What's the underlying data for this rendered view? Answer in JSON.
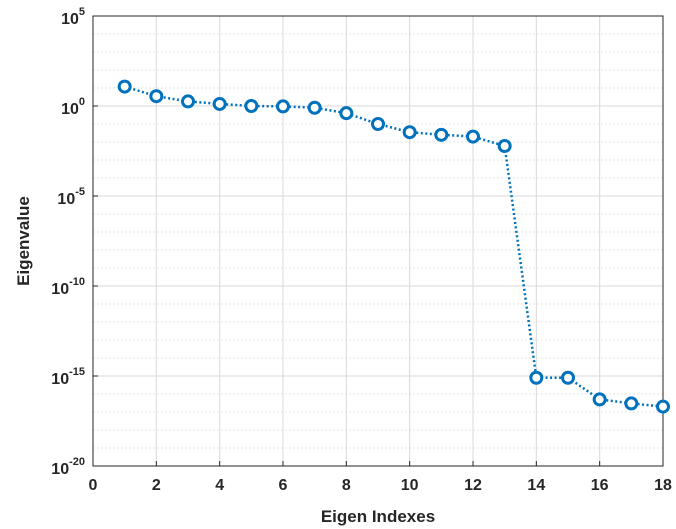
{
  "chart_data": {
    "type": "line",
    "xlabel": "Eigen Indexes",
    "ylabel": "Eigenvalue",
    "x_ticks": [
      "0",
      "2",
      "4",
      "6",
      "8",
      "10",
      "12",
      "14",
      "16",
      "18"
    ],
    "y_ticks": [
      {
        "base": "10",
        "exp": "-20"
      },
      {
        "base": "10",
        "exp": "-15"
      },
      {
        "base": "10",
        "exp": "-10"
      },
      {
        "base": "10",
        "exp": "-5"
      },
      {
        "base": "10",
        "exp": "0"
      },
      {
        "base": "10",
        "exp": "5"
      }
    ],
    "xlim": [
      0,
      18
    ],
    "ylim": [
      1e-20,
      100000.0
    ],
    "y_scale": "log",
    "grid": true,
    "minor_grid": true,
    "series": [
      {
        "color": "#0072BD",
        "marker": "circle",
        "line_style": "dotted",
        "x": [
          1,
          2,
          3,
          4,
          5,
          6,
          7,
          8,
          9,
          10,
          11,
          12,
          13,
          14,
          15,
          16,
          17,
          18
        ],
        "values": [
          12,
          3.5,
          1.8,
          1.3,
          1.0,
          0.95,
          0.8,
          0.4,
          0.1,
          0.035,
          0.025,
          0.02,
          0.006,
          8e-16,
          8e-16,
          5e-17,
          3e-17,
          2e-17
        ]
      }
    ]
  }
}
